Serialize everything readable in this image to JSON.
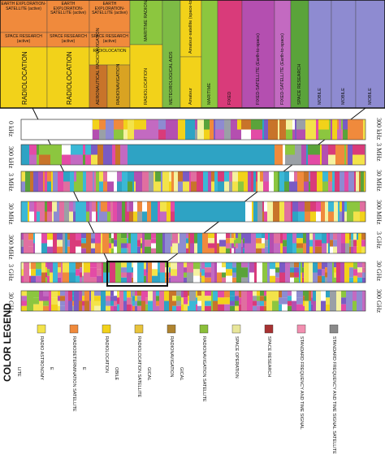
{
  "zoom_panel": {
    "cells": [
      {
        "text": "EARTH EXPLORATION-SATELLITE (active)",
        "color": "#f08a3c"
      },
      {
        "text": "EARTH EXPLORATION-SATELLITE (active)",
        "color": "#f08a3c"
      },
      {
        "text": "EARTH EXPLORATION-SATELLITE (active)",
        "color": "#f08a3c"
      },
      {
        "text": "SPACE RESEARCH (active)",
        "color": "#f08a3c"
      },
      {
        "text": "SPACE RESEARCH (active)",
        "color": "#f08a3c"
      },
      {
        "text": "SPACE RESEARCH (active)",
        "color": "#f08a3c"
      },
      {
        "text": "RADIOLOCATION",
        "color": "#f2d21a"
      },
      {
        "text": "RADIOLOCATION",
        "color": "#f2d21a"
      },
      {
        "text": "RADIOLOCATION",
        "color": "#f2d21a"
      },
      {
        "text": "AERONAUTICAL RADIONAVIGATION",
        "color": "#c8742a"
      },
      {
        "text": "RADIONAVIGATION",
        "color": "#d9a322"
      },
      {
        "text": "MARITIME RADIONAVIGATION",
        "color": "#8cc63f"
      },
      {
        "text": "RADIOLOCATION",
        "color": "#f2d21a"
      },
      {
        "text": "METEOROLOGICAL AIDS",
        "color": "#7dbb45"
      },
      {
        "text": "Amateur-satellite (space-to-Earth)",
        "color": "#f2d21a"
      },
      {
        "text": "Amateur",
        "color": "#f2d21a"
      },
      {
        "text": "FIXED",
        "color": "#d93b7a"
      },
      {
        "text": "FIXED-SATELLITE (Earth-to-space)",
        "color": "#b44fb0"
      },
      {
        "text": "FIXED-SATELLITE (Earth-to-space)",
        "color": "#c36ac1"
      },
      {
        "text": "MOBILE",
        "color": "#8e8bd1"
      },
      {
        "text": "MOBILE",
        "color": "#8e8bd1"
      },
      {
        "text": "SPACE RESEARCH",
        "color": "#5aa33a"
      },
      {
        "text": "MARITIME",
        "color": "#8cc63f"
      },
      {
        "text": "MOBILE",
        "color": "#8e8bd1"
      }
    ]
  },
  "bands": [
    {
      "start": "0 kHz",
      "end": "300 kHz"
    },
    {
      "start": "300 kHz",
      "end": "3 MHz"
    },
    {
      "start": "3 MHz",
      "end": "30 MHz"
    },
    {
      "start": "30 MHz",
      "end": "300 MHz"
    },
    {
      "start": "300 MHz",
      "end": "3 GHz"
    },
    {
      "start": "3 GHz",
      "end": "30 GHz"
    },
    {
      "start": "30 GHz",
      "end": "300 GHz"
    }
  ],
  "legend": {
    "title": "COLOR LEGEND",
    "items": [
      {
        "label": "RADIO ASTRONOMY",
        "color": "#f3e34a"
      },
      {
        "label": "RADIODETERMINATION SATELLITE",
        "color": "#f08a3c"
      },
      {
        "label": "RADIOLOCATION",
        "color": "#f2d21a"
      },
      {
        "label": "RADIOLOCATION SATELLITE",
        "color": "#e8c33a"
      },
      {
        "label": "RADIONAVIGATION",
        "color": "#b0842f"
      },
      {
        "label": "RADIONAVIGATION SATELLITE",
        "color": "#8bbf3a"
      },
      {
        "label": "SPACE OPERATION",
        "color": "#e8e69a"
      },
      {
        "label": "SPACE RESEARCH",
        "color": "#a83232"
      },
      {
        "label": "STANDARD FREQUENCY AND TIME SIGNAL",
        "color": "#f28fb0"
      },
      {
        "label": "STANDARD FREQUENCY AND TIME SIGNAL SATELLITE",
        "color": "#8a8a8a"
      }
    ],
    "partial_labels": [
      "LITE",
      "E",
      "E",
      "OBILE",
      "GICAL",
      "GICAL"
    ]
  },
  "palette": [
    "#f3e34a",
    "#f08a3c",
    "#f2d21a",
    "#d93b7a",
    "#b44fb0",
    "#8e8bd1",
    "#2ea3c4",
    "#c36ac1",
    "#8cc63f",
    "#e34ba6",
    "#f5f2a0",
    "#5aa33a",
    "#7a5bc4",
    "#e06fa0",
    "#3bb8d6",
    "#9aa0a6",
    "#ffffff",
    "#c8742a"
  ]
}
